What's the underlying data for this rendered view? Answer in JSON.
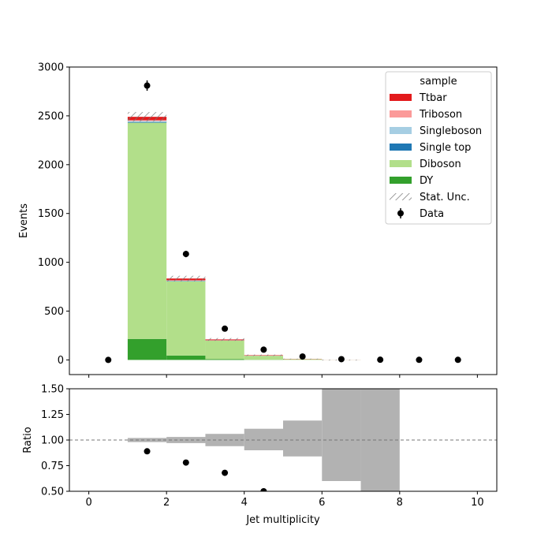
{
  "chart_data": {
    "type": "bar",
    "subtype": "stacked-histogram-with-ratio",
    "bin_edges": [
      0,
      1,
      2,
      3,
      4,
      5,
      6,
      7,
      8,
      9,
      10
    ],
    "bin_centers": [
      0.5,
      1.5,
      2.5,
      3.5,
      4.5,
      5.5,
      6.5,
      7.5,
      8.5,
      9.5
    ],
    "xlabel": "Jet multiplicity",
    "xlim": [
      -0.5,
      10.5
    ],
    "xticks": [
      0,
      2,
      4,
      6,
      8,
      10
    ],
    "main": {
      "ylabel": "Events",
      "ylim": [
        -150,
        3000
      ],
      "yticks": [
        0,
        500,
        1000,
        1500,
        2000,
        2500,
        3000
      ],
      "stack_order_bottom_to_top": [
        "DY",
        "Diboson",
        "Single top",
        "Singleboson",
        "Triboson",
        "Ttbar"
      ],
      "series": [
        {
          "name": "DY",
          "color": "#33a02c",
          "values": [
            0,
            215,
            45,
            8,
            2,
            0.5,
            0.1,
            0,
            0,
            0
          ]
        },
        {
          "name": "Diboson",
          "color": "#b2df8a",
          "values": [
            0,
            2215,
            760,
            190,
            40,
            7,
            0.8,
            0,
            0,
            0
          ]
        },
        {
          "name": "Single top",
          "color": "#1f78b4",
          "values": [
            0,
            6,
            3,
            1,
            0.5,
            0.2,
            0,
            0,
            0,
            0
          ]
        },
        {
          "name": "Singleboson",
          "color": "#a6cee3",
          "values": [
            0,
            12,
            4,
            1,
            0.3,
            0.1,
            0,
            0,
            0,
            0
          ]
        },
        {
          "name": "Triboson",
          "color": "#fb9a99",
          "values": [
            0,
            8,
            4,
            2,
            1,
            0.3,
            0,
            0,
            0,
            0
          ]
        },
        {
          "name": "Ttbar",
          "color": "#e31a1c",
          "values": [
            0,
            34,
            18,
            8,
            4,
            2,
            0.5,
            0,
            0,
            0
          ]
        }
      ],
      "stat_unc": {
        "name": "Stat. Unc.",
        "color": "#777777",
        "halfwidth": [
          0,
          49,
          28,
          14,
          7,
          3,
          1,
          0,
          0,
          0
        ]
      },
      "data": {
        "name": "Data",
        "color": "#000000",
        "values": [
          0,
          2810,
          1085,
          320,
          105,
          35,
          8,
          2,
          1,
          1
        ]
      }
    },
    "ratio": {
      "ylabel": "Ratio",
      "ylim": [
        0.5,
        1.5
      ],
      "yticks": [
        0.5,
        0.75,
        1.0,
        1.25,
        1.5
      ],
      "ytick_labels": [
        "0.50",
        "0.75",
        "1.00",
        "1.25",
        "1.50"
      ],
      "reference_line": 1.0,
      "unc_band": {
        "color": "#b2b2b2",
        "low": [
          null,
          0.98,
          0.97,
          0.94,
          0.9,
          0.84,
          0.6,
          0.5,
          null,
          null
        ],
        "high": [
          null,
          1.02,
          1.03,
          1.06,
          1.11,
          1.19,
          1.5,
          1.5,
          null,
          null
        ]
      },
      "points": [
        null,
        0.89,
        0.78,
        0.68,
        0.5,
        null,
        null,
        null,
        null,
        null
      ]
    },
    "legend": {
      "title": "sample",
      "placement": "top-right",
      "entries": [
        {
          "label": "Ttbar",
          "kind": "patch",
          "color": "#e31a1c"
        },
        {
          "label": "Triboson",
          "kind": "patch",
          "color": "#fb9a99"
        },
        {
          "label": "Singleboson",
          "kind": "patch",
          "color": "#a6cee3"
        },
        {
          "label": "Single top",
          "kind": "patch",
          "color": "#1f78b4"
        },
        {
          "label": "Diboson",
          "kind": "patch",
          "color": "#b2df8a"
        },
        {
          "label": "DY",
          "kind": "patch",
          "color": "#33a02c"
        },
        {
          "label": "Stat. Unc.",
          "kind": "hatch",
          "color": "#777777"
        },
        {
          "label": "Data",
          "kind": "errorbar",
          "color": "#000000"
        }
      ]
    }
  }
}
